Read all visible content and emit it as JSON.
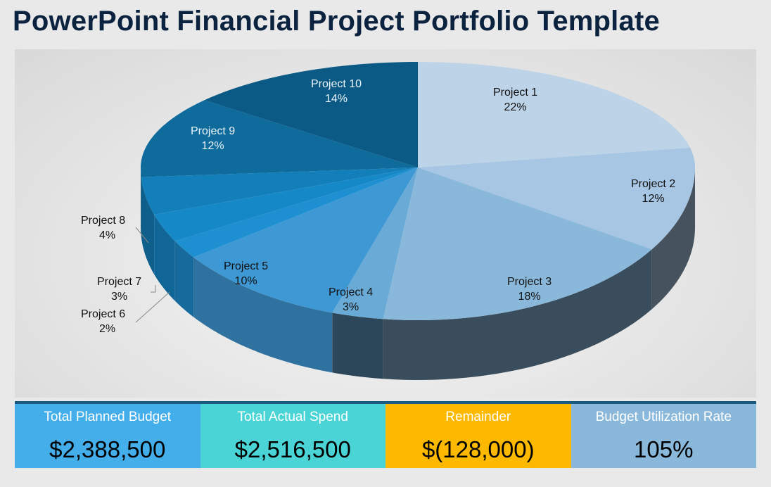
{
  "title": "PowerPoint Financial Project Portfolio Template",
  "chart_data": {
    "type": "pie",
    "style": "3d",
    "categories": [
      "Project 1",
      "Project 2",
      "Project 3",
      "Project 4",
      "Project 5",
      "Project 6",
      "Project 7",
      "Project 8",
      "Project 9",
      "Project 10"
    ],
    "values": [
      22,
      12,
      18,
      3,
      10,
      2,
      3,
      4,
      12,
      14
    ],
    "labels": [
      "22%",
      "12%",
      "18%",
      "3%",
      "10%",
      "2%",
      "3%",
      "4%",
      "12%",
      "14%"
    ],
    "colors": [
      "#bdd3e8",
      "#a6c6e3",
      "#8ab8da",
      "#6aaad6",
      "#3e98d4",
      "#1e8fd0",
      "#1588c8",
      "#127fba",
      "#0e6b9c",
      "#0b5a85"
    ]
  },
  "summary": [
    {
      "label": "Total Planned Budget",
      "value": "$2,388,500",
      "color": "#44aeea"
    },
    {
      "label": "Total Actual Spend",
      "value": "$2,516,500",
      "color": "#4bd4d6"
    },
    {
      "label": "Remainder",
      "value": "$(128,000)",
      "color": "#fdb900"
    },
    {
      "label": "Budget Utilization Rate",
      "value": "105%",
      "color": "#8ab8da"
    }
  ]
}
